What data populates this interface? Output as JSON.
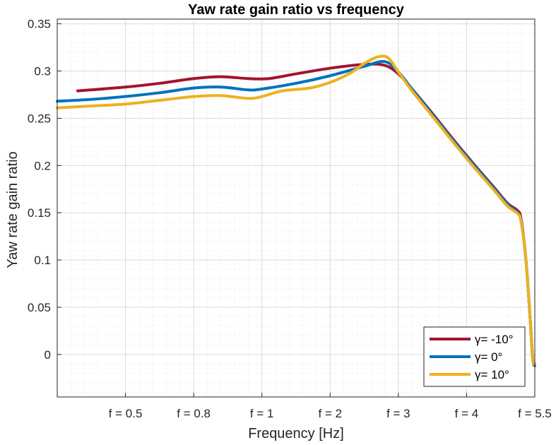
{
  "chart_data": {
    "type": "line",
    "title": "Yaw rate gain ratio vs frequency",
    "xlabel": "Frequency [Hz]",
    "ylabel": "Yaw rate gain ratio",
    "xlim": [
      0,
      7
    ],
    "ylim": [
      -0.045,
      0.355
    ],
    "grid": true,
    "minor_grid": true,
    "legend_position": "bottom-right",
    "x_ticks": [
      {
        "value": 1,
        "label": "f = 0.5"
      },
      {
        "value": 2,
        "label": "f = 0.8"
      },
      {
        "value": 3,
        "label": "f = 1"
      },
      {
        "value": 4,
        "label": "f = 2"
      },
      {
        "value": 5,
        "label": "f = 3"
      },
      {
        "value": 6,
        "label": "f = 4"
      },
      {
        "value": 7,
        "label": "f = 5.5"
      }
    ],
    "y_ticks": [
      {
        "value": 0.35,
        "label": "0.35"
      },
      {
        "value": 0.3,
        "label": "0.3"
      },
      {
        "value": 0.25,
        "label": "0.25"
      },
      {
        "value": 0.2,
        "label": "0.2"
      },
      {
        "value": 0.15,
        "label": "0.15"
      },
      {
        "value": 0.1,
        "label": "0.1"
      },
      {
        "value": 0.05,
        "label": "0.05"
      },
      {
        "value": 0,
        "label": "0"
      }
    ],
    "series": [
      {
        "name": "γ= -10°",
        "color": "#A2142F",
        "points": [
          [
            0.3,
            0.279
          ],
          [
            1.0,
            0.283
          ],
          [
            1.5,
            0.287
          ],
          [
            2.0,
            0.292
          ],
          [
            2.4,
            0.294
          ],
          [
            2.8,
            0.292
          ],
          [
            3.1,
            0.292
          ],
          [
            3.5,
            0.297
          ],
          [
            4.0,
            0.303
          ],
          [
            4.5,
            0.307
          ],
          [
            4.8,
            0.306
          ],
          [
            5.0,
            0.297
          ],
          [
            5.2,
            0.281
          ],
          [
            5.5,
            0.255
          ],
          [
            5.8,
            0.228
          ],
          [
            6.1,
            0.202
          ],
          [
            6.4,
            0.177
          ],
          [
            6.6,
            0.16
          ],
          [
            6.75,
            0.152
          ],
          [
            6.8,
            0.143
          ],
          [
            6.87,
            0.1
          ],
          [
            6.93,
            0.04
          ],
          [
            6.97,
            -0.005
          ],
          [
            7.0,
            -0.01
          ]
        ]
      },
      {
        "name": "γ= 0°",
        "color": "#0072BD",
        "points": [
          [
            0.0,
            0.268
          ],
          [
            0.5,
            0.27
          ],
          [
            1.0,
            0.273
          ],
          [
            1.5,
            0.277
          ],
          [
            2.0,
            0.282
          ],
          [
            2.4,
            0.283
          ],
          [
            2.8,
            0.28
          ],
          [
            3.0,
            0.281
          ],
          [
            3.5,
            0.287
          ],
          [
            4.0,
            0.295
          ],
          [
            4.5,
            0.305
          ],
          [
            4.8,
            0.31
          ],
          [
            5.0,
            0.299
          ],
          [
            5.2,
            0.281
          ],
          [
            5.5,
            0.254
          ],
          [
            5.8,
            0.227
          ],
          [
            6.1,
            0.201
          ],
          [
            6.4,
            0.176
          ],
          [
            6.6,
            0.159
          ],
          [
            6.75,
            0.15
          ],
          [
            6.8,
            0.141
          ],
          [
            6.87,
            0.1
          ],
          [
            6.93,
            0.04
          ],
          [
            6.97,
            -0.005
          ],
          [
            7.0,
            -0.012
          ]
        ]
      },
      {
        "name": "γ= 10°",
        "color": "#EDB120",
        "points": [
          [
            0.0,
            0.261
          ],
          [
            0.5,
            0.263
          ],
          [
            1.0,
            0.265
          ],
          [
            1.5,
            0.269
          ],
          [
            2.0,
            0.273
          ],
          [
            2.4,
            0.274
          ],
          [
            2.8,
            0.271
          ],
          [
            3.0,
            0.273
          ],
          [
            3.3,
            0.279
          ],
          [
            3.7,
            0.282
          ],
          [
            4.0,
            0.288
          ],
          [
            4.3,
            0.298
          ],
          [
            4.5,
            0.308
          ],
          [
            4.7,
            0.315
          ],
          [
            4.85,
            0.314
          ],
          [
            5.0,
            0.299
          ],
          [
            5.2,
            0.279
          ],
          [
            5.5,
            0.252
          ],
          [
            5.8,
            0.225
          ],
          [
            6.1,
            0.199
          ],
          [
            6.4,
            0.174
          ],
          [
            6.6,
            0.157
          ],
          [
            6.75,
            0.149
          ],
          [
            6.8,
            0.14
          ],
          [
            6.87,
            0.1
          ],
          [
            6.93,
            0.04
          ],
          [
            6.97,
            -0.005
          ],
          [
            7.0,
            -0.01
          ]
        ]
      }
    ]
  }
}
